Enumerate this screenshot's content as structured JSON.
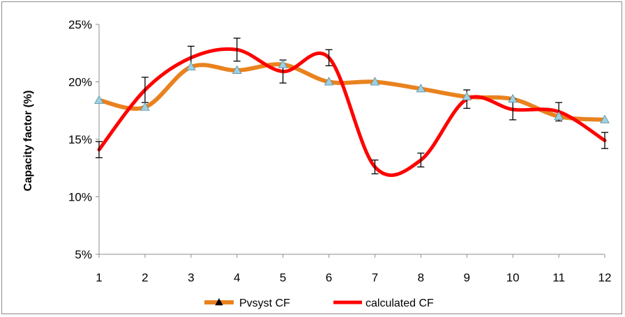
{
  "chart_data": {
    "type": "line",
    "title": "",
    "xlabel": "",
    "ylabel": "Capacity factor (%)",
    "x": [
      1,
      2,
      3,
      4,
      5,
      6,
      7,
      8,
      9,
      10,
      11,
      12
    ],
    "x_tick_labels": [
      "1",
      "2",
      "3",
      "4",
      "5",
      "6",
      "7",
      "8",
      "9",
      "10",
      "11",
      "12"
    ],
    "ylim": [
      0.05,
      0.25
    ],
    "y_ticks": [
      0.05,
      0.1,
      0.15,
      0.2,
      0.25
    ],
    "y_tick_labels": [
      "5%",
      "10%",
      "15%",
      "20%",
      "25%"
    ],
    "grid": false,
    "legend_position": "bottom",
    "series": [
      {
        "name": "Pvsyst CF",
        "color": "#E9821E",
        "marker": "triangle",
        "marker_color": "#9ed0e0",
        "values": [
          0.184,
          0.178,
          0.213,
          0.21,
          0.215,
          0.2,
          0.2,
          0.194,
          0.187,
          0.185,
          0.17,
          0.167
        ]
      },
      {
        "name": "calculated CF",
        "color": "#FF0000",
        "marker": "none",
        "values": [
          0.141,
          0.193,
          0.221,
          0.228,
          0.209,
          0.221,
          0.126,
          0.132,
          0.185,
          0.176,
          0.174,
          0.149
        ],
        "error": [
          0.007,
          0.011,
          0.01,
          0.01,
          0.01,
          0.007,
          0.006,
          0.006,
          0.008,
          0.009,
          0.008,
          0.007
        ]
      }
    ]
  }
}
